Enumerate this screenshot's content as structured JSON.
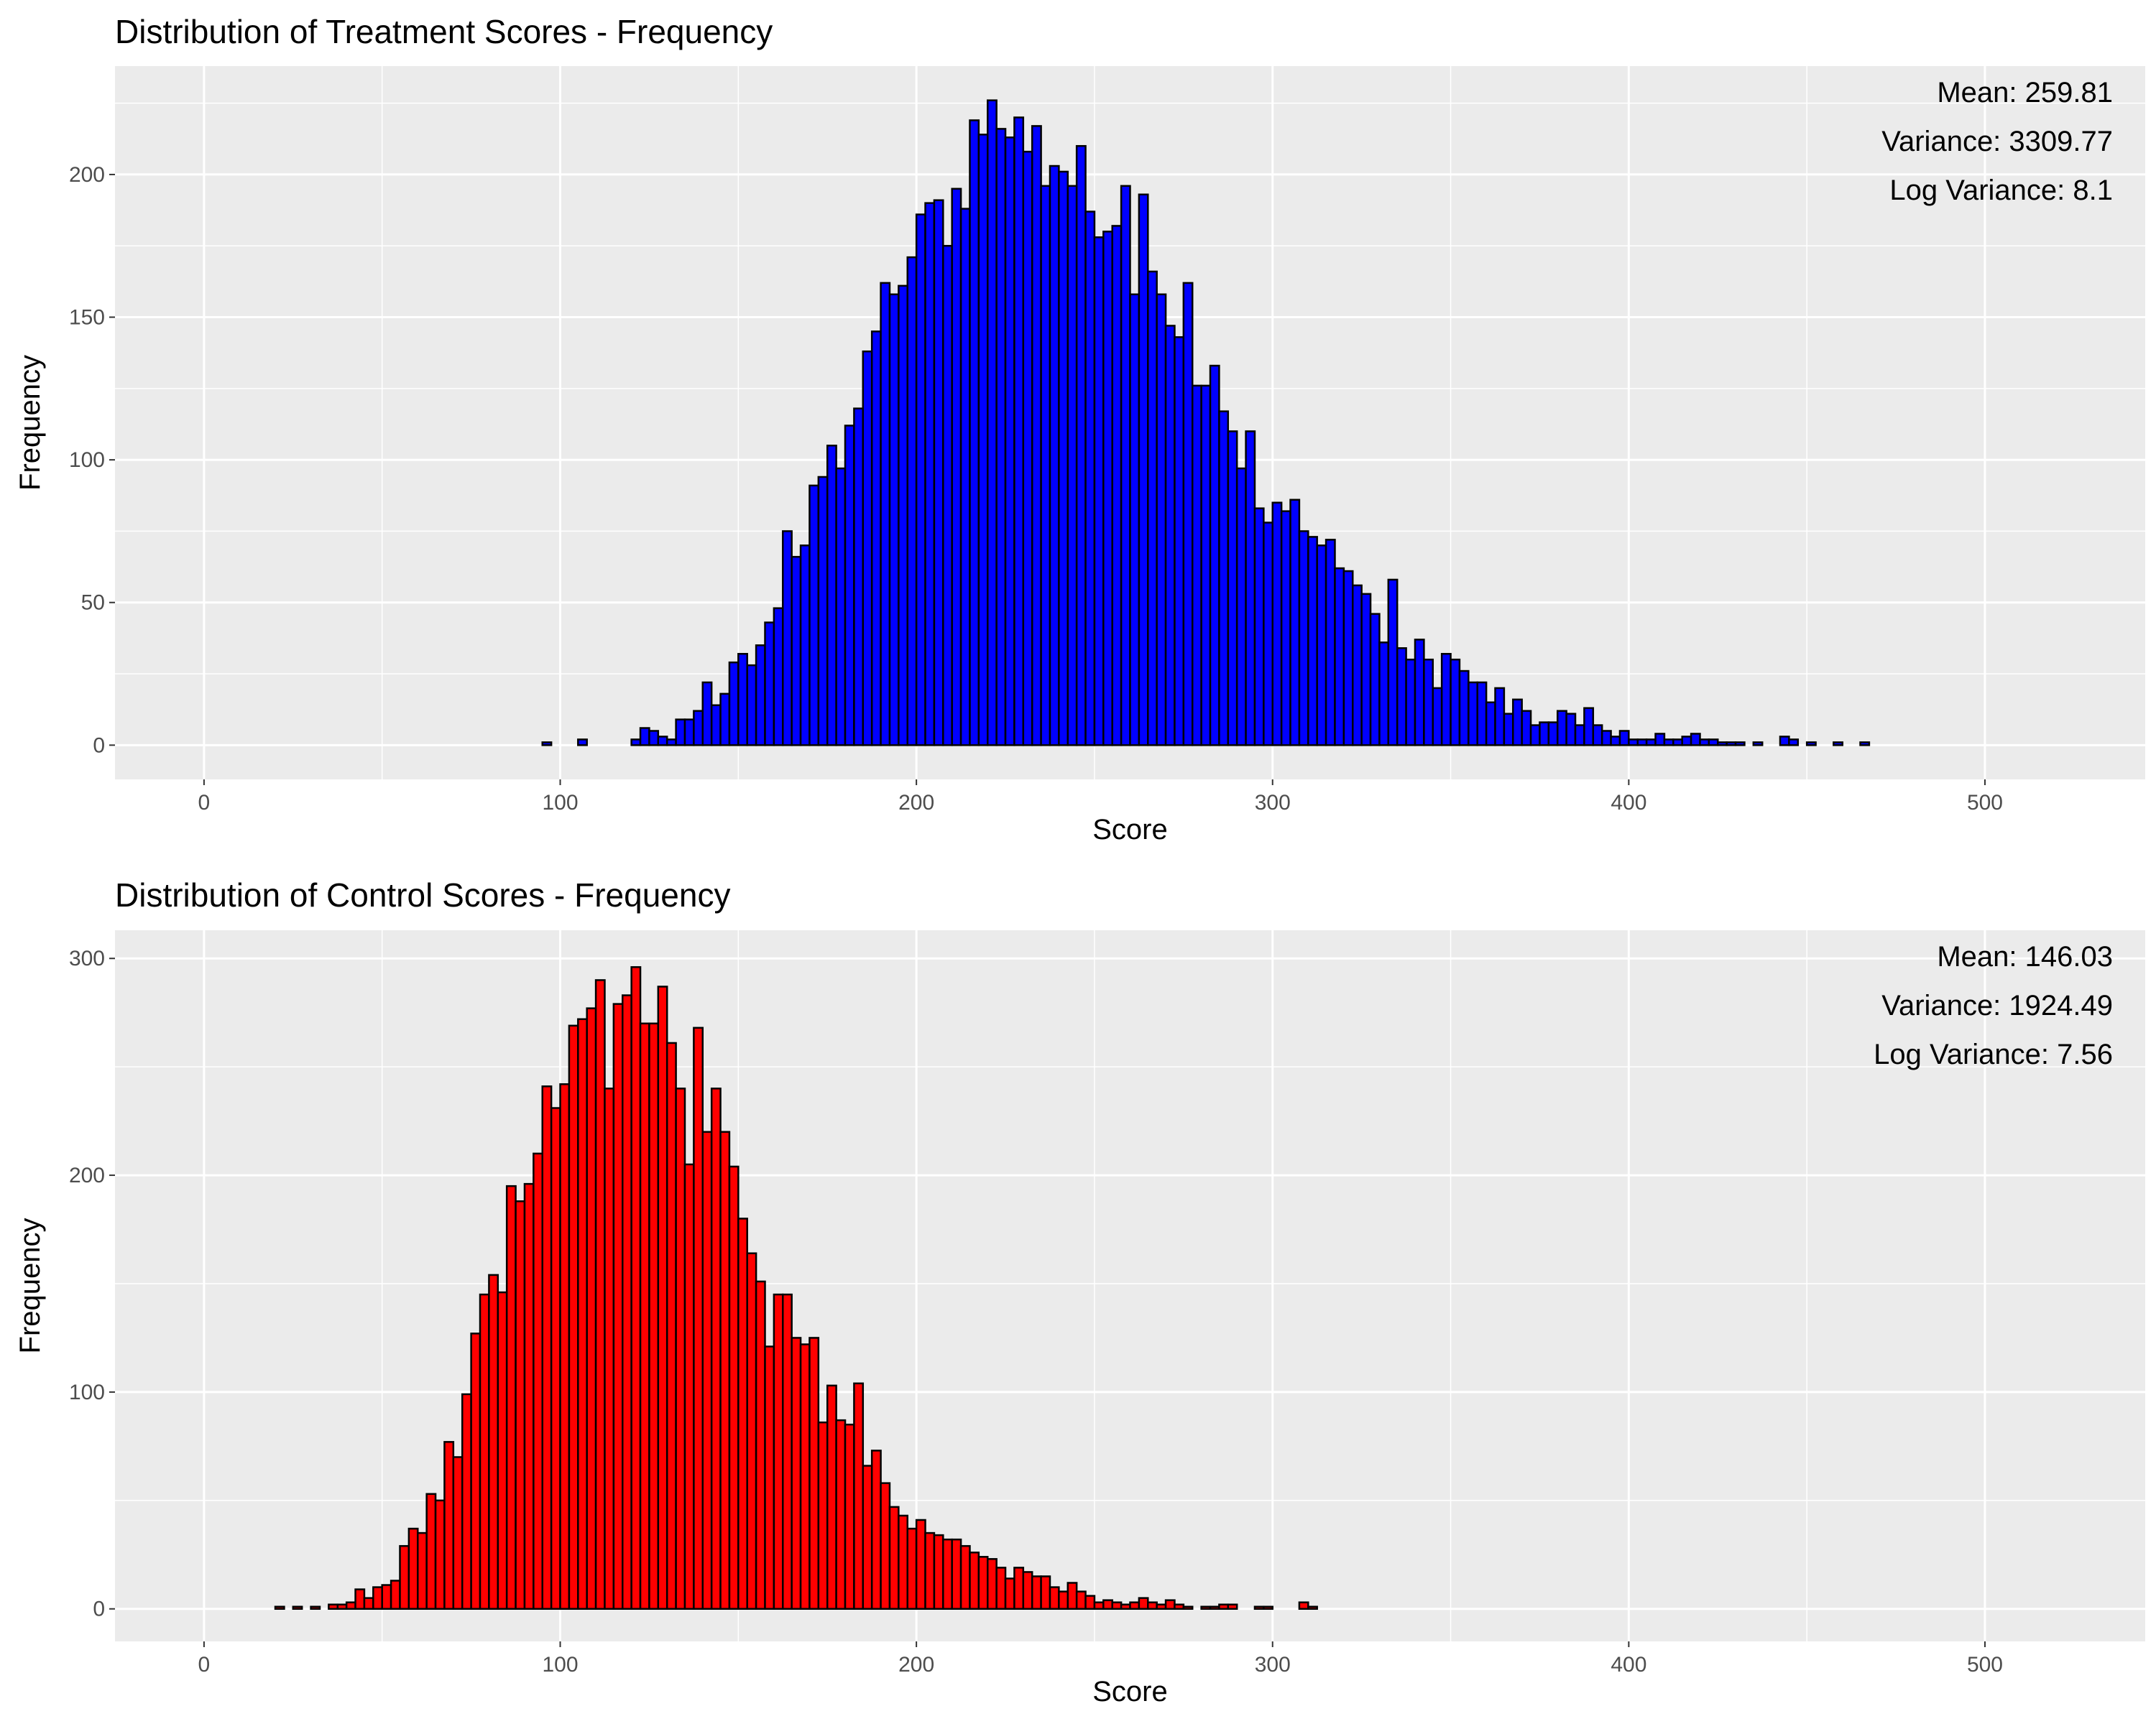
{
  "chart_data": [
    {
      "type": "bar",
      "title": "Distribution of Treatment Scores - Frequency",
      "xlabel": "Score",
      "ylabel": "Frequency",
      "xlim": [
        -25,
        545
      ],
      "ylim": [
        -12,
        238
      ],
      "x_ticks": [
        0,
        100,
        200,
        300,
        400,
        500
      ],
      "y_ticks": [
        0,
        50,
        100,
        150,
        200
      ],
      "grid": true,
      "bin_start": 2.5,
      "bin_width": 2.5,
      "fill_color": "#0000ff",
      "stats": [
        "Mean: 259.81",
        "Variance: 3309.77",
        "Log Variance: 8.1"
      ],
      "values": [
        0,
        0,
        0,
        0,
        0,
        0,
        0,
        0,
        0,
        0,
        0,
        0,
        0,
        0,
        0,
        0,
        0,
        0,
        0,
        0,
        0,
        0,
        0,
        0,
        0,
        0,
        0,
        0,
        0,
        0,
        0,
        0,
        0,
        0,
        0,
        0,
        0,
        1,
        0,
        0,
        0,
        2,
        0,
        0,
        0,
        0,
        0,
        2,
        6,
        5,
        3,
        2,
        9,
        9,
        12,
        22,
        14,
        18,
        29,
        32,
        28,
        35,
        43,
        48,
        75,
        66,
        70,
        91,
        94,
        105,
        97,
        112,
        118,
        138,
        145,
        162,
        158,
        161,
        171,
        186,
        190,
        191,
        175,
        195,
        188,
        219,
        214,
        226,
        216,
        213,
        220,
        208,
        217,
        196,
        203,
        201,
        196,
        210,
        187,
        178,
        180,
        182,
        196,
        158,
        193,
        166,
        158,
        147,
        143,
        162,
        126,
        126,
        133,
        117,
        110,
        97,
        110,
        83,
        78,
        85,
        82,
        86,
        75,
        73,
        70,
        72,
        62,
        61,
        56,
        53,
        46,
        36,
        58,
        34,
        30,
        37,
        30,
        20,
        32,
        30,
        26,
        22,
        22,
        15,
        20,
        11,
        16,
        12,
        7,
        8,
        8,
        12,
        11,
        7,
        13,
        7,
        5,
        3,
        5,
        2,
        2,
        2,
        4,
        2,
        2,
        3,
        4,
        2,
        2,
        1,
        1,
        1,
        0,
        1,
        0,
        0,
        3,
        2,
        0,
        1,
        0,
        0,
        1,
        0,
        0,
        1,
        0,
        0
      ]
    },
    {
      "type": "bar",
      "title": "Distribution of Control Scores - Frequency",
      "xlabel": "Score",
      "ylabel": "Frequency",
      "xlim": [
        -25,
        545
      ],
      "ylim": [
        -15,
        313
      ],
      "x_ticks": [
        0,
        100,
        200,
        300,
        400,
        500
      ],
      "y_ticks": [
        0,
        100,
        200,
        300
      ],
      "grid": true,
      "bin_start": 2.5,
      "bin_width": 2.5,
      "fill_color": "#ff0000",
      "stats": [
        "Mean: 146.03",
        "Variance: 1924.49",
        "Log Variance: 7.56"
      ],
      "values": [
        0,
        0,
        0,
        0,
        0,
        0,
        0,
        1,
        0,
        1,
        0,
        1,
        0,
        2,
        2,
        3,
        9,
        5,
        10,
        11,
        13,
        29,
        37,
        35,
        53,
        50,
        77,
        70,
        99,
        127,
        145,
        154,
        146,
        195,
        188,
        196,
        210,
        241,
        231,
        242,
        269,
        272,
        277,
        290,
        240,
        279,
        283,
        296,
        270,
        270,
        287,
        261,
        240,
        205,
        268,
        220,
        240,
        220,
        204,
        180,
        164,
        151,
        121,
        145,
        145,
        125,
        122,
        125,
        86,
        103,
        87,
        85,
        104,
        66,
        73,
        58,
        47,
        43,
        37,
        41,
        35,
        34,
        32,
        32,
        29,
        26,
        24,
        23,
        19,
        14,
        19,
        17,
        15,
        15,
        10,
        8,
        12,
        8,
        6,
        3,
        4,
        3,
        2,
        3,
        5,
        3,
        2,
        4,
        2,
        1,
        0,
        1,
        1,
        2,
        2,
        0,
        0,
        1,
        1,
        0,
        0,
        0,
        3,
        1,
        0,
        0,
        0,
        0,
        0,
        0,
        0,
        0,
        0,
        0,
        0,
        0,
        0,
        0,
        0,
        0,
        0,
        0,
        0,
        0,
        0,
        0,
        0,
        0,
        0,
        0,
        0,
        0,
        0,
        0,
        0,
        0,
        0,
        0,
        0,
        0,
        0,
        0,
        0,
        0,
        0,
        0,
        0,
        0,
        0,
        0,
        0,
        0,
        0,
        0,
        0,
        0,
        0,
        0,
        0,
        0,
        0,
        0,
        0,
        0,
        0,
        0,
        0,
        0,
        0,
        0,
        0,
        0,
        0,
        0,
        0,
        0,
        0,
        0,
        0,
        0,
        0,
        0,
        0,
        0,
        0,
        0,
        0,
        0
      ]
    }
  ]
}
